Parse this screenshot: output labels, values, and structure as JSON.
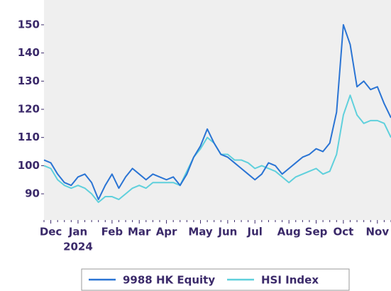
{
  "chart_data": {
    "type": "line",
    "categories": [
      null,
      "Dec",
      null,
      null,
      null,
      "Jan",
      null,
      null,
      null,
      null,
      "Feb",
      null,
      null,
      null,
      "Mar",
      null,
      null,
      null,
      "Apr",
      null,
      null,
      null,
      null,
      "May",
      null,
      null,
      null,
      "Jun",
      null,
      null,
      null,
      "Jul",
      null,
      null,
      null,
      null,
      "Aug",
      null,
      null,
      null,
      "Sep",
      null,
      null,
      null,
      "Oct",
      null,
      null,
      null,
      null,
      "Nov",
      null,
      null
    ],
    "year_label": "2024",
    "series": [
      {
        "name": "9988 HK Equity",
        "color": "#2a74d4",
        "values": [
          102,
          101,
          97,
          94,
          93,
          96,
          97,
          94,
          88,
          93,
          97,
          92,
          96,
          99,
          97,
          95,
          97,
          96,
          95,
          96,
          93,
          97,
          103,
          107,
          113,
          108,
          104,
          103,
          101,
          99,
          97,
          95,
          97,
          101,
          100,
          97,
          99,
          101,
          103,
          104,
          106,
          105,
          108,
          119,
          150,
          143,
          128,
          130,
          127,
          128,
          122,
          117
        ]
      },
      {
        "name": "HSI Index",
        "color": "#5fd0dc",
        "values": [
          100,
          99,
          95,
          93,
          92,
          93,
          92,
          90,
          87,
          89,
          89,
          88,
          90,
          92,
          93,
          92,
          94,
          94,
          94,
          94,
          93,
          98,
          103,
          106,
          110,
          108,
          104,
          104,
          102,
          102,
          101,
          99,
          100,
          99,
          98,
          96,
          94,
          96,
          97,
          98,
          99,
          97,
          98,
          104,
          118,
          125,
          118,
          115,
          116,
          116,
          115,
          110
        ]
      }
    ],
    "ylim": [
      80.7,
      158.8
    ],
    "yticks": [
      90,
      100,
      110,
      120,
      130,
      140,
      150
    ],
    "grid": false,
    "legend": "bottom"
  }
}
